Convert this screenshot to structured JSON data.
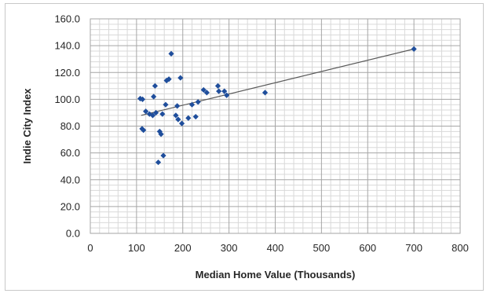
{
  "chart_data": {
    "type": "scatter",
    "title": "",
    "xlabel": "Median Home Value (Thousands)",
    "ylabel": "Indie City Index",
    "xlim": [
      0,
      800
    ],
    "ylim": [
      0,
      160
    ],
    "x_ticks": [
      0,
      100,
      200,
      300,
      400,
      500,
      600,
      700,
      800
    ],
    "y_ticks": [
      0,
      20,
      40,
      60,
      80,
      100,
      120,
      140,
      160
    ],
    "x_tick_labels": [
      "0",
      "100",
      "200",
      "300",
      "400",
      "500",
      "600",
      "700",
      "800"
    ],
    "y_tick_labels": [
      "0.0",
      "20.0",
      "40.0",
      "60.0",
      "80.0",
      "100.0",
      "120.0",
      "140.0",
      "160.0"
    ],
    "x_major_step": 100,
    "x_minor_step": 20,
    "y_major_step": 20,
    "y_minor_step": 4,
    "grid": true,
    "legend": "none",
    "point_color": "#1f4e9c",
    "trendline_color": "#595959",
    "grid_major_color": "#a6a6a6",
    "grid_minor_color": "#d9d9d9",
    "trendline": {
      "x": [
        110,
        700
      ],
      "y": [
        88,
        137.5
      ]
    },
    "points": [
      {
        "x": 108,
        "y": 100.5
      },
      {
        "x": 113,
        "y": 100
      },
      {
        "x": 112,
        "y": 78
      },
      {
        "x": 115,
        "y": 77
      },
      {
        "x": 120,
        "y": 91
      },
      {
        "x": 128,
        "y": 89
      },
      {
        "x": 135,
        "y": 88
      },
      {
        "x": 137,
        "y": 102
      },
      {
        "x": 140,
        "y": 110
      },
      {
        "x": 142,
        "y": 90
      },
      {
        "x": 147,
        "y": 53
      },
      {
        "x": 150,
        "y": 76
      },
      {
        "x": 153,
        "y": 74
      },
      {
        "x": 156,
        "y": 89
      },
      {
        "x": 158,
        "y": 58
      },
      {
        "x": 163,
        "y": 96
      },
      {
        "x": 165,
        "y": 114
      },
      {
        "x": 170,
        "y": 115
      },
      {
        "x": 175,
        "y": 134
      },
      {
        "x": 185,
        "y": 88
      },
      {
        "x": 188,
        "y": 95
      },
      {
        "x": 190,
        "y": 85
      },
      {
        "x": 195,
        "y": 116
      },
      {
        "x": 198,
        "y": 82
      },
      {
        "x": 212,
        "y": 86
      },
      {
        "x": 220,
        "y": 96
      },
      {
        "x": 228,
        "y": 87
      },
      {
        "x": 233,
        "y": 98
      },
      {
        "x": 245,
        "y": 107
      },
      {
        "x": 252,
        "y": 105
      },
      {
        "x": 276,
        "y": 110
      },
      {
        "x": 278,
        "y": 106
      },
      {
        "x": 290,
        "y": 106
      },
      {
        "x": 295,
        "y": 103
      },
      {
        "x": 378,
        "y": 105
      },
      {
        "x": 700,
        "y": 137.5
      }
    ]
  }
}
